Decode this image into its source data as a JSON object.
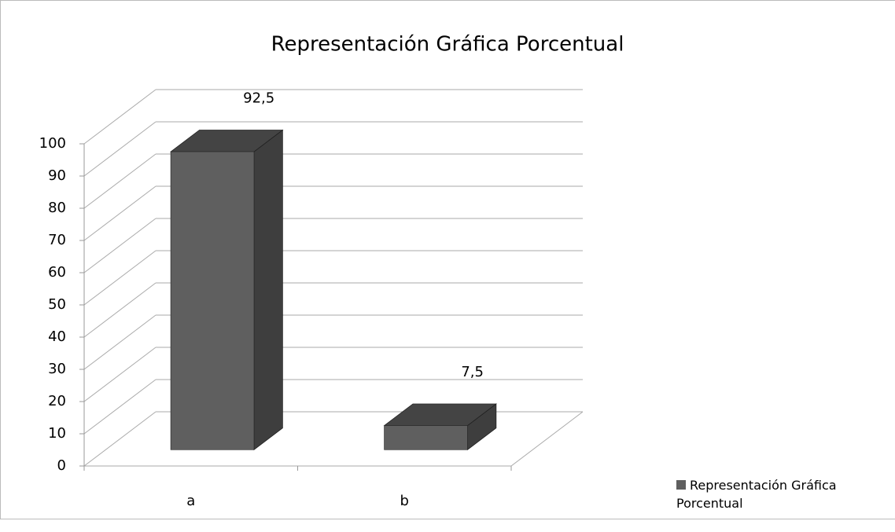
{
  "chart_data": {
    "type": "bar3d",
    "title": "Representación Gráfica Porcentual",
    "categories": [
      "a",
      "b"
    ],
    "series": [
      {
        "name": "Representación Gráfica Porcentual",
        "color": "#5f5f5f",
        "values": [
          92.5,
          7.5
        ],
        "value_labels": [
          "92,5",
          "7,5"
        ]
      }
    ],
    "ylim": [
      0,
      100
    ],
    "yticks": [
      0,
      10,
      20,
      30,
      40,
      50,
      60,
      70,
      80,
      90,
      100
    ],
    "grid": true,
    "legend": "right"
  }
}
